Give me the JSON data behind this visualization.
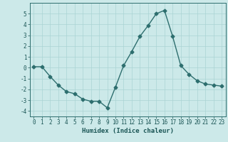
{
  "x": [
    0,
    1,
    2,
    3,
    4,
    5,
    6,
    7,
    8,
    9,
    10,
    11,
    12,
    13,
    14,
    15,
    16,
    17,
    18,
    19,
    20,
    21,
    22,
    23
  ],
  "y": [
    0.1,
    0.1,
    -0.8,
    -1.6,
    -2.2,
    -2.4,
    -2.9,
    -3.1,
    -3.1,
    -3.7,
    -1.8,
    0.2,
    1.5,
    2.9,
    3.9,
    5.0,
    5.3,
    2.9,
    0.2,
    -0.6,
    -1.2,
    -1.5,
    -1.6,
    -1.7
  ],
  "line_color": "#2d6e6e",
  "marker": "D",
  "markersize": 2.5,
  "linewidth": 1.0,
  "bg_color": "#cce9e9",
  "grid_color": "#aad4d4",
  "axis_color": "#2d6e6e",
  "tick_color": "#1a5555",
  "xlabel": "Humidex (Indice chaleur)",
  "xlabel_fontsize": 6.5,
  "xlabel_color": "#1a5555",
  "ylim": [
    -4.5,
    6.0
  ],
  "xlim": [
    -0.5,
    23.5
  ],
  "yticks": [
    -4,
    -3,
    -2,
    -1,
    0,
    1,
    2,
    3,
    4,
    5
  ],
  "xticks": [
    0,
    1,
    2,
    3,
    4,
    5,
    6,
    7,
    8,
    9,
    10,
    11,
    12,
    13,
    14,
    15,
    16,
    17,
    18,
    19,
    20,
    21,
    22,
    23
  ],
  "tick_fontsize": 5.5
}
